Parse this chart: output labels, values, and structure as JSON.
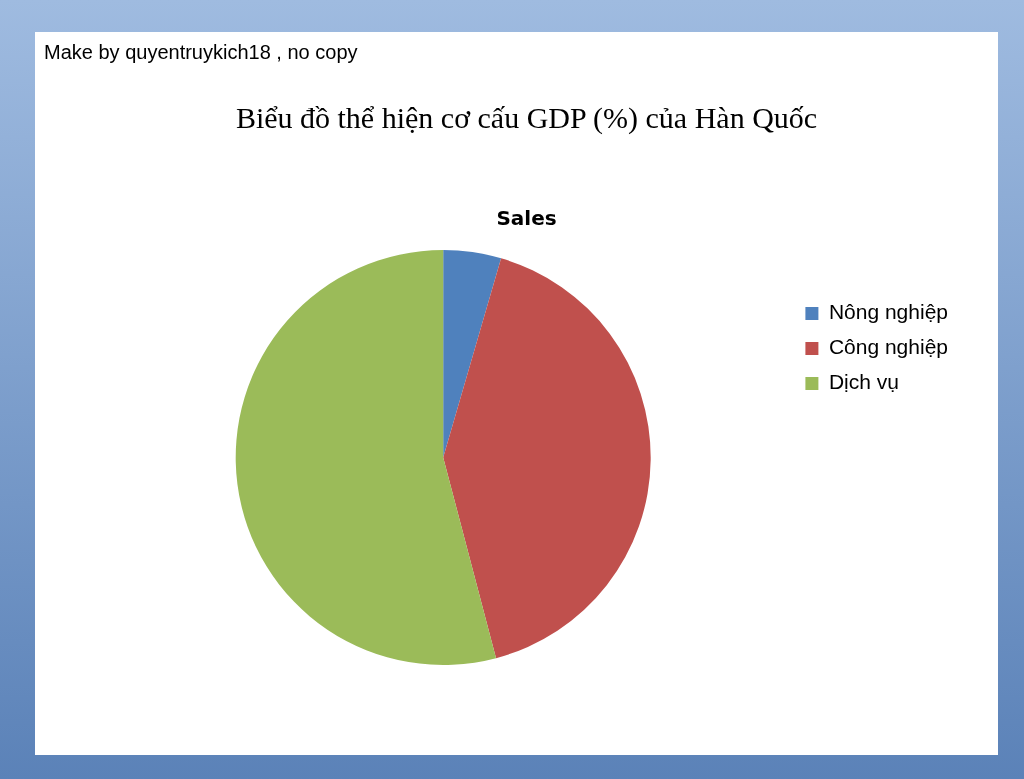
{
  "chart_data": {
    "type": "pie",
    "title": "Biểu đồ thể hiện cơ cấu GDP (%) của Hàn Quốc",
    "subtitle": "Sales",
    "annotations": [
      "Make by quyentruykich18 , no copy"
    ],
    "categories": [
      "Nông nghiệp",
      "Công nghiệp",
      "Dịch vụ"
    ],
    "values": [
      4.5,
      41.4,
      54.1
    ],
    "colors": [
      "#4f81bd",
      "#c0504d",
      "#9bbb59"
    ],
    "legend": "right"
  }
}
